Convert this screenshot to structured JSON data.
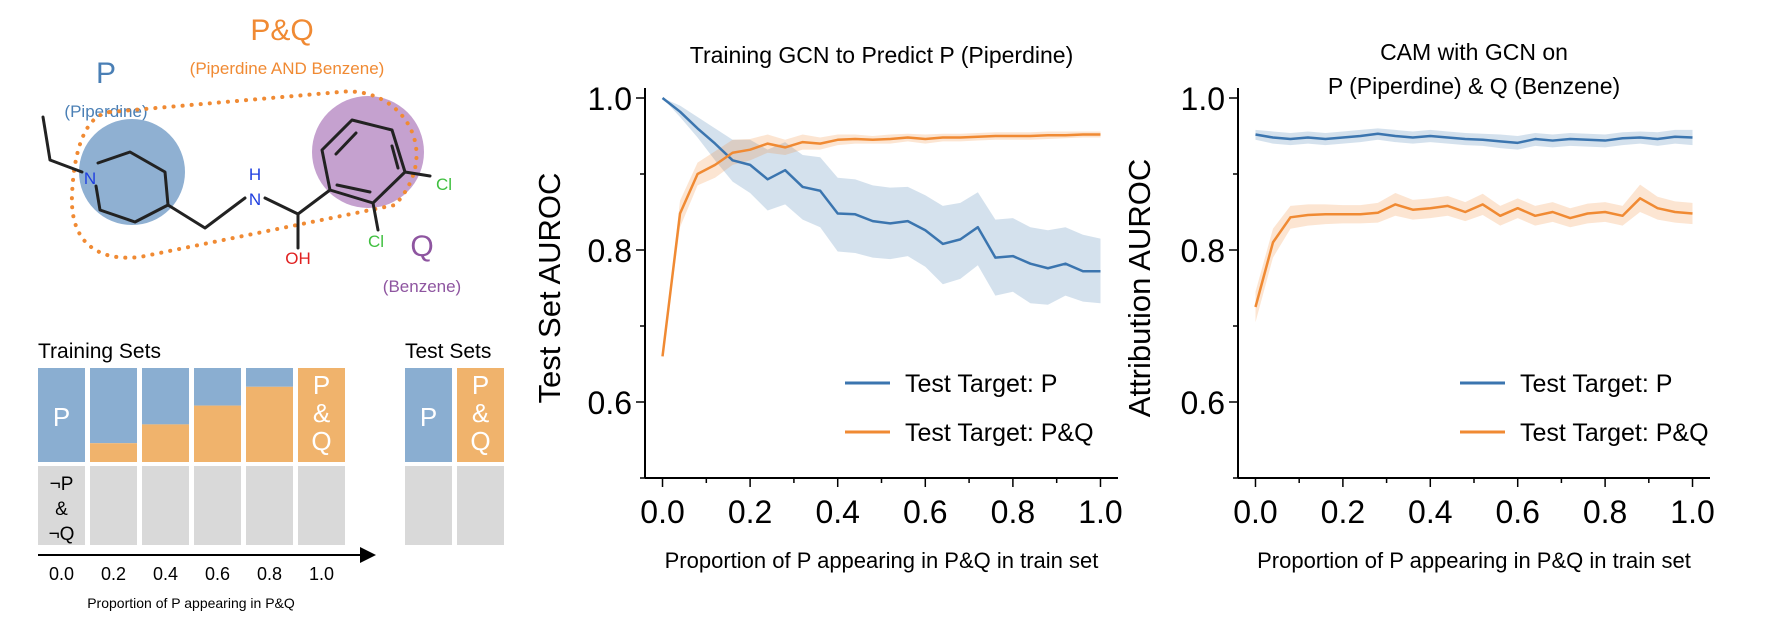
{
  "molecule": {
    "pq_label": "P&Q",
    "pq_sub": "(Piperdine AND Benzene)",
    "p_label": "P",
    "p_sub": "(Piperdine)",
    "q_label": "Q",
    "q_sub": "(Benzene)",
    "atom_n1": "N",
    "atom_n2": "N",
    "atom_h": "H",
    "atom_oh": "OH",
    "atom_cl1": "Cl",
    "atom_cl2": "Cl",
    "colors": {
      "p": "#4a7fb5",
      "q": "#8e55a0",
      "pq": "#f08a33",
      "n": "#1f3fe0",
      "o": "#e02020",
      "cl": "#3fbf3f"
    }
  },
  "training_sets": {
    "title": "Training Sets",
    "test_title": "Test Sets",
    "p_text": "P",
    "pq_lines": [
      "P",
      "&",
      "Q"
    ],
    "neg_lines": [
      "¬P",
      "&",
      "¬Q"
    ],
    "ticks": [
      "0.0",
      "0.2",
      "0.4",
      "0.6",
      "0.8",
      "1.0"
    ],
    "xlabel": "Proportion of P appearing in P&Q",
    "pq_fractions": [
      0,
      0.2,
      0.4,
      0.6,
      0.8,
      1.0
    ],
    "colors": {
      "p": "#8aaed1",
      "pq": "#f0b36c",
      "neg": "#d9d9d9"
    }
  },
  "chart_data": [
    {
      "type": "line",
      "title": "Training GCN to Predict P (Piperdine)",
      "xlabel": "Proportion of P appearing in P&Q in train set",
      "ylabel": "Test Set AUROC",
      "xlim": [
        -0.04,
        1.04
      ],
      "ylim": [
        0.5,
        1.0
      ],
      "xticks": [
        "0.0",
        "0.2",
        "0.4",
        "0.6",
        "0.8",
        "1.0"
      ],
      "yticks": [
        "0.6",
        "0.8",
        "1.0"
      ],
      "legend": "lower-right",
      "x": [
        0.0,
        0.04,
        0.08,
        0.12,
        0.16,
        0.2,
        0.24,
        0.28,
        0.32,
        0.36,
        0.4,
        0.44,
        0.48,
        0.52,
        0.56,
        0.6,
        0.64,
        0.68,
        0.72,
        0.76,
        0.8,
        0.84,
        0.88,
        0.92,
        0.96,
        1.0
      ],
      "series": [
        {
          "name": "Test Target: P",
          "color": "#3b75af",
          "values": [
            1.0,
            0.982,
            0.96,
            0.94,
            0.918,
            0.912,
            0.893,
            0.905,
            0.883,
            0.878,
            0.848,
            0.847,
            0.838,
            0.835,
            0.838,
            0.826,
            0.808,
            0.814,
            0.83,
            0.79,
            0.792,
            0.782,
            0.776,
            0.782,
            0.772,
            0.772
          ],
          "lower": [
            1.0,
            0.975,
            0.948,
            0.918,
            0.89,
            0.875,
            0.852,
            0.86,
            0.84,
            0.83,
            0.798,
            0.796,
            0.79,
            0.788,
            0.792,
            0.778,
            0.755,
            0.762,
            0.78,
            0.74,
            0.745,
            0.73,
            0.728,
            0.74,
            0.732,
            0.73
          ],
          "upper": [
            1.0,
            0.99,
            0.975,
            0.96,
            0.945,
            0.945,
            0.932,
            0.942,
            0.925,
            0.922,
            0.895,
            0.893,
            0.885,
            0.882,
            0.883,
            0.872,
            0.858,
            0.862,
            0.876,
            0.84,
            0.842,
            0.83,
            0.826,
            0.83,
            0.82,
            0.815
          ]
        },
        {
          "name": "Test Target: P&Q",
          "color": "#f08a33",
          "values": [
            0.66,
            0.848,
            0.9,
            0.912,
            0.928,
            0.932,
            0.94,
            0.935,
            0.942,
            0.94,
            0.945,
            0.946,
            0.945,
            0.946,
            0.948,
            0.946,
            0.948,
            0.948,
            0.949,
            0.95,
            0.95,
            0.95,
            0.951,
            0.951,
            0.952,
            0.952
          ],
          "lower": [
            0.66,
            0.83,
            0.885,
            0.895,
            0.912,
            0.918,
            0.928,
            0.925,
            0.932,
            0.932,
            0.938,
            0.94,
            0.94,
            0.94,
            0.943,
            0.94,
            0.943,
            0.943,
            0.944,
            0.945,
            0.945,
            0.945,
            0.946,
            0.947,
            0.948,
            0.948
          ],
          "upper": [
            0.66,
            0.865,
            0.915,
            0.93,
            0.945,
            0.946,
            0.952,
            0.945,
            0.952,
            0.948,
            0.952,
            0.952,
            0.95,
            0.952,
            0.953,
            0.952,
            0.953,
            0.953,
            0.954,
            0.955,
            0.955,
            0.955,
            0.956,
            0.956,
            0.956,
            0.956
          ]
        }
      ]
    },
    {
      "type": "line",
      "title": "CAM with GCN on\nP (Piperdine) & Q (Benzene)",
      "xlabel": "Proportion of P appearing in P&Q in train set",
      "ylabel": "Attribution AUROC",
      "xlim": [
        -0.04,
        1.04
      ],
      "ylim": [
        0.5,
        1.0
      ],
      "xticks": [
        "0.0",
        "0.2",
        "0.4",
        "0.6",
        "0.8",
        "1.0"
      ],
      "yticks": [
        "0.6",
        "0.8",
        "1.0"
      ],
      "legend": "lower-right",
      "x": [
        0.0,
        0.04,
        0.08,
        0.12,
        0.16,
        0.2,
        0.24,
        0.28,
        0.32,
        0.36,
        0.4,
        0.44,
        0.48,
        0.52,
        0.56,
        0.6,
        0.64,
        0.68,
        0.72,
        0.76,
        0.8,
        0.84,
        0.88,
        0.92,
        0.96,
        1.0
      ],
      "series": [
        {
          "name": "Test Target: P",
          "color": "#3b75af",
          "values": [
            0.952,
            0.948,
            0.946,
            0.948,
            0.946,
            0.948,
            0.95,
            0.953,
            0.95,
            0.948,
            0.95,
            0.948,
            0.946,
            0.945,
            0.943,
            0.941,
            0.946,
            0.944,
            0.946,
            0.945,
            0.944,
            0.947,
            0.948,
            0.946,
            0.949,
            0.948
          ],
          "lower": [
            0.945,
            0.94,
            0.938,
            0.94,
            0.938,
            0.94,
            0.942,
            0.945,
            0.942,
            0.94,
            0.942,
            0.94,
            0.938,
            0.937,
            0.934,
            0.932,
            0.937,
            0.935,
            0.937,
            0.936,
            0.935,
            0.938,
            0.94,
            0.937,
            0.94,
            0.938
          ],
          "upper": [
            0.958,
            0.956,
            0.954,
            0.956,
            0.954,
            0.956,
            0.958,
            0.96,
            0.958,
            0.956,
            0.958,
            0.956,
            0.954,
            0.953,
            0.952,
            0.95,
            0.954,
            0.952,
            0.954,
            0.953,
            0.952,
            0.955,
            0.956,
            0.955,
            0.958,
            0.958
          ]
        },
        {
          "name": "Test Target: P&Q",
          "color": "#f08a33",
          "values": [
            0.725,
            0.81,
            0.843,
            0.846,
            0.847,
            0.847,
            0.847,
            0.849,
            0.86,
            0.853,
            0.855,
            0.858,
            0.85,
            0.86,
            0.845,
            0.855,
            0.845,
            0.85,
            0.842,
            0.848,
            0.85,
            0.845,
            0.868,
            0.855,
            0.85,
            0.848
          ],
          "lower": [
            0.705,
            0.79,
            0.828,
            0.832,
            0.834,
            0.835,
            0.835,
            0.836,
            0.845,
            0.84,
            0.842,
            0.845,
            0.838,
            0.846,
            0.832,
            0.842,
            0.832,
            0.837,
            0.83,
            0.835,
            0.837,
            0.832,
            0.85,
            0.84,
            0.836,
            0.834
          ],
          "upper": [
            0.745,
            0.828,
            0.858,
            0.86,
            0.86,
            0.859,
            0.859,
            0.862,
            0.875,
            0.866,
            0.868,
            0.871,
            0.863,
            0.874,
            0.858,
            0.868,
            0.858,
            0.863,
            0.855,
            0.861,
            0.863,
            0.858,
            0.886,
            0.87,
            0.864,
            0.862
          ]
        }
      ]
    }
  ]
}
